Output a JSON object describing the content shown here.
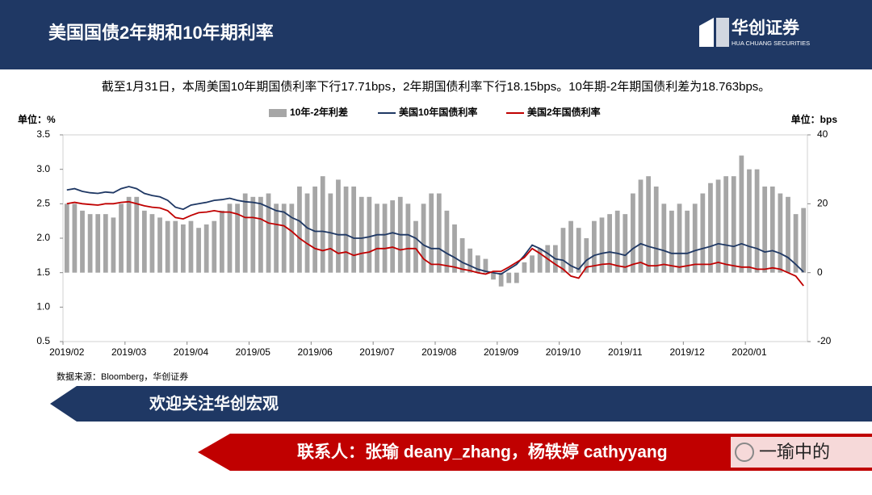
{
  "header": {
    "title": "美国国债2年期和10年期利率",
    "logo": "华创证券",
    "logo_sub": "HUA CHUANG SECURITIES"
  },
  "subtitle": "截至1月31日，本周美国10年期国债利率下行17.71bps，2年期国债利率下行18.15bps。10年期-2年期国债利差为18.763bps。",
  "source": "数据来源：Bloomberg，华创证券",
  "banner": "欢迎关注华创宏观",
  "contact": "联系人：张瑜 deany_zhang，杨轶婷 cathyyang",
  "watermark": "一瑜中的",
  "chart_data": {
    "type": "combo",
    "y_unit": "单位：%",
    "y2_unit": "单位：bps",
    "categories": [
      "2019/02",
      null,
      null,
      null,
      null,
      null,
      null,
      null,
      "2019/03",
      null,
      null,
      null,
      null,
      null,
      null,
      null,
      "2019/04",
      null,
      null,
      null,
      null,
      null,
      null,
      null,
      "2019/05",
      null,
      null,
      null,
      null,
      null,
      null,
      null,
      "2019/06",
      null,
      null,
      null,
      null,
      null,
      null,
      null,
      "2019/07",
      null,
      null,
      null,
      null,
      null,
      null,
      null,
      "2019/08",
      null,
      null,
      null,
      null,
      null,
      null,
      null,
      "2019/09",
      null,
      null,
      null,
      null,
      null,
      null,
      null,
      "2019/10",
      null,
      null,
      null,
      null,
      null,
      null,
      null,
      "2019/11",
      null,
      null,
      null,
      null,
      null,
      null,
      null,
      "2019/12",
      null,
      null,
      null,
      null,
      null,
      null,
      null,
      "2020/01",
      null,
      null,
      null,
      null,
      null,
      null,
      null
    ],
    "ylim": [
      0.5,
      3.5
    ],
    "yticks": [
      0.5,
      {
        "value": 1,
        "label": "1.0"
      },
      1.5,
      {
        "value": 2,
        "label": "2.0"
      },
      2.5,
      {
        "value": 3,
        "label": "3.0"
      },
      3.5
    ],
    "y2lim": [
      -20,
      40
    ],
    "y2ticks": [
      -20,
      0,
      20,
      40
    ],
    "series": [
      {
        "name": "10年-2年利差",
        "type": "bar",
        "axis": "y2",
        "color": "#a6a6a6",
        "values": [
          20,
          20,
          18,
          17,
          17,
          17,
          16,
          20,
          22,
          22,
          18,
          17,
          16,
          15,
          15,
          14,
          15,
          13,
          14,
          15,
          18,
          20,
          20,
          23,
          22,
          22,
          23,
          20,
          20,
          20,
          25,
          23,
          25,
          28,
          23,
          27,
          25,
          25,
          22,
          22,
          20,
          20,
          21,
          22,
          20,
          15,
          20,
          23,
          23,
          18,
          14,
          10,
          7,
          5,
          4,
          -2,
          -4,
          -3,
          -3,
          3,
          5,
          7,
          8,
          8,
          13,
          15,
          13,
          10,
          15,
          16,
          17,
          18,
          17,
          23,
          27,
          28,
          25,
          20,
          18,
          20,
          18,
          20,
          23,
          26,
          27,
          28,
          28,
          34,
          30,
          30,
          25,
          25,
          23,
          22,
          17,
          18.763
        ]
      },
      {
        "name": "美国10年国债利率",
        "type": "line",
        "color": "#1f3864",
        "values": [
          2.7,
          2.72,
          2.68,
          2.66,
          2.65,
          2.67,
          2.66,
          2.72,
          2.75,
          2.72,
          2.65,
          2.62,
          2.6,
          2.55,
          2.45,
          2.42,
          2.48,
          2.5,
          2.52,
          2.55,
          2.56,
          2.58,
          2.55,
          2.53,
          2.52,
          2.5,
          2.45,
          2.4,
          2.38,
          2.3,
          2.25,
          2.15,
          2.1,
          2.1,
          2.08,
          2.05,
          2.05,
          2.0,
          2.0,
          2.02,
          2.05,
          2.05,
          2.08,
          2.05,
          2.05,
          2.0,
          1.9,
          1.85,
          1.85,
          1.78,
          1.72,
          1.65,
          1.6,
          1.55,
          1.52,
          1.5,
          1.48,
          1.55,
          1.62,
          1.75,
          1.9,
          1.85,
          1.78,
          1.7,
          1.68,
          1.6,
          1.55,
          1.68,
          1.75,
          1.78,
          1.8,
          1.78,
          1.75,
          1.85,
          1.92,
          1.88,
          1.85,
          1.82,
          1.78,
          1.78,
          1.78,
          1.82,
          1.85,
          1.88,
          1.92,
          1.9,
          1.88,
          1.92,
          1.88,
          1.85,
          1.8,
          1.82,
          1.78,
          1.72,
          1.62,
          1.51
        ]
      },
      {
        "name": "美国2年国债利率",
        "type": "line",
        "color": "#c00000",
        "values": [
          2.5,
          2.52,
          2.5,
          2.49,
          2.48,
          2.5,
          2.5,
          2.52,
          2.53,
          2.5,
          2.47,
          2.45,
          2.44,
          2.4,
          2.3,
          2.28,
          2.33,
          2.37,
          2.38,
          2.4,
          2.38,
          2.38,
          2.35,
          2.3,
          2.3,
          2.28,
          2.22,
          2.2,
          2.18,
          2.1,
          2.0,
          1.92,
          1.85,
          1.82,
          1.85,
          1.78,
          1.8,
          1.75,
          1.78,
          1.8,
          1.85,
          1.85,
          1.87,
          1.83,
          1.85,
          1.85,
          1.7,
          1.62,
          1.62,
          1.6,
          1.58,
          1.55,
          1.53,
          1.5,
          1.48,
          1.52,
          1.52,
          1.58,
          1.65,
          1.72,
          1.85,
          1.78,
          1.7,
          1.62,
          1.55,
          1.45,
          1.42,
          1.58,
          1.6,
          1.62,
          1.63,
          1.6,
          1.58,
          1.62,
          1.65,
          1.6,
          1.6,
          1.62,
          1.6,
          1.58,
          1.6,
          1.62,
          1.62,
          1.62,
          1.65,
          1.62,
          1.6,
          1.58,
          1.58,
          1.55,
          1.55,
          1.57,
          1.55,
          1.5,
          1.45,
          1.31
        ]
      }
    ]
  }
}
